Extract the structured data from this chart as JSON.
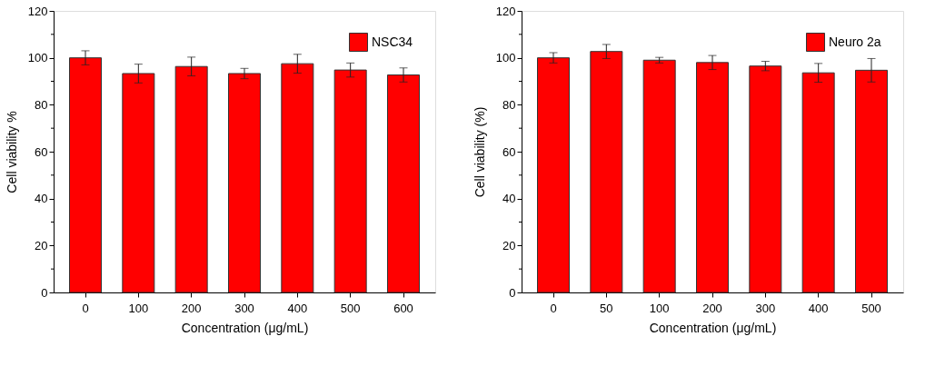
{
  "chart_data": [
    {
      "type": "bar",
      "xlabel": "Concentration (μg/mL)",
      "ylabel": "Cell viability %",
      "categories": [
        "0",
        "100",
        "200",
        "300",
        "400",
        "500",
        "600"
      ],
      "series": [
        {
          "name": "NSC34",
          "color": "#ff0000",
          "values": [
            100,
            93.3,
            96.3,
            93.3,
            97.5,
            94.8,
            92.7
          ],
          "errors": [
            3,
            4,
            4,
            2.2,
            4,
            3,
            3
          ]
        }
      ],
      "ylim": [
        0,
        120
      ],
      "yticks": [
        0,
        {
          "value": 10,
          "label": null
        },
        20,
        {
          "value": 30,
          "label": null
        },
        40,
        {
          "value": 50,
          "label": null
        },
        60,
        {
          "value": 70,
          "label": null
        },
        80,
        {
          "value": 90,
          "label": null
        },
        100,
        {
          "value": 110,
          "label": null
        },
        120
      ],
      "legend": "top right",
      "grid": false
    },
    {
      "type": "bar",
      "xlabel": "Concentration (μg/mL)",
      "ylabel": "Cell viability (%)",
      "categories": [
        "0",
        "50",
        "100",
        "200",
        "300",
        "400",
        "500"
      ],
      "series": [
        {
          "name": "Neuro 2a",
          "color": "#ff0000",
          "values": [
            100,
            102.7,
            99,
            98,
            96.5,
            93.6,
            94.7
          ],
          "errors": [
            2.2,
            3,
            1.2,
            3,
            2,
            4,
            5
          ]
        }
      ],
      "ylim": [
        0,
        120
      ],
      "yticks": [
        0,
        {
          "value": 10,
          "label": null
        },
        20,
        {
          "value": 30,
          "label": null
        },
        40,
        {
          "value": 50,
          "label": null
        },
        60,
        {
          "value": 70,
          "label": null
        },
        80,
        {
          "value": 90,
          "label": null
        },
        100,
        {
          "value": 110,
          "label": null
        },
        120
      ],
      "legend": "top right",
      "grid": false
    }
  ]
}
